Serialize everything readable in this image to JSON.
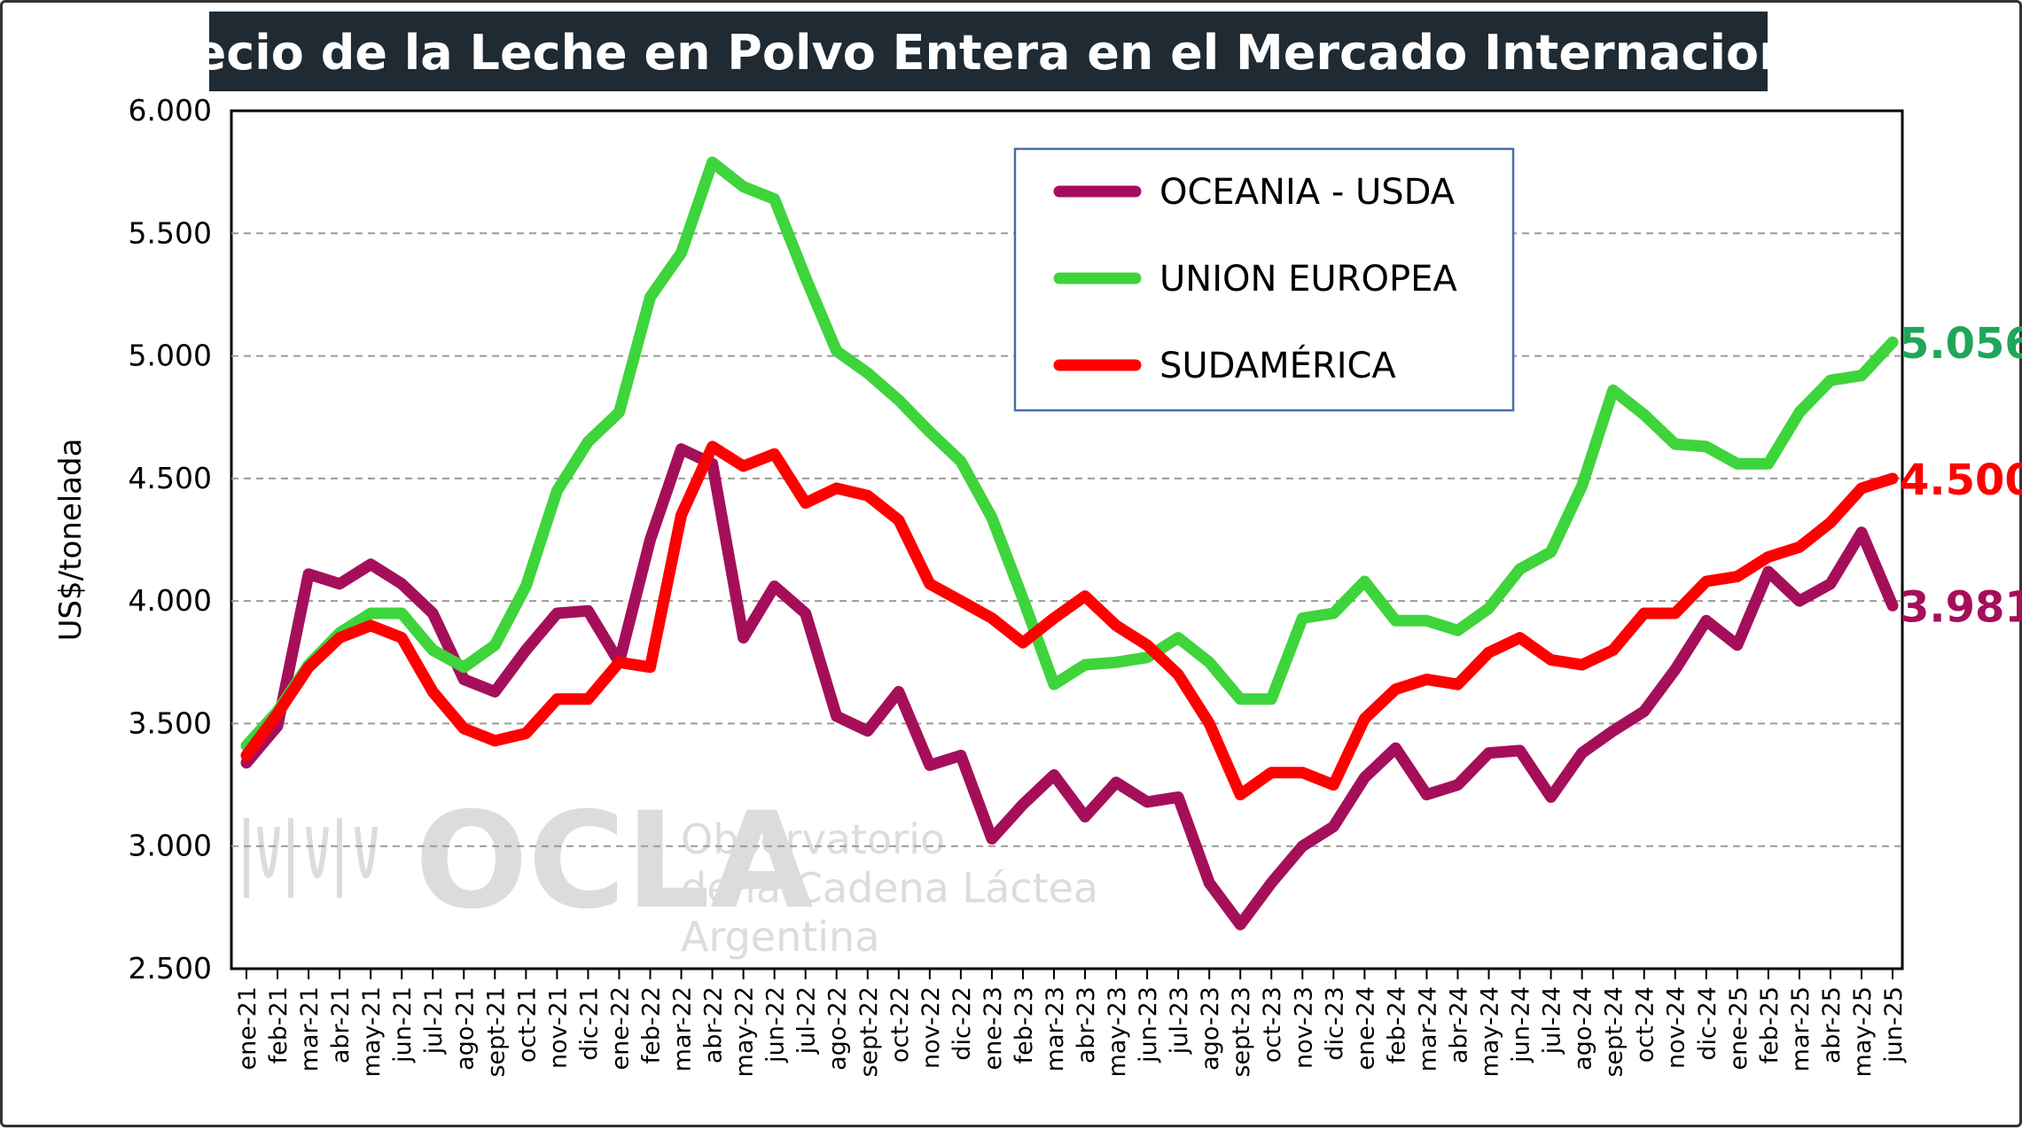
{
  "title": "Precio de la Leche en Polvo Entera en el Mercado Internacional",
  "watermark": {
    "logo": "OCLA",
    "line1": "Observatorio",
    "line2": "de la Cadena Láctea",
    "line3": "Argentina"
  },
  "chart_data": {
    "type": "line",
    "title": "Precio de la Leche en Polvo Entera en el Mercado Internacional",
    "xlabel": "",
    "ylabel": "US$/tonelada",
    "ylim": [
      2500,
      6000
    ],
    "yticks": [
      2500,
      3000,
      3500,
      4000,
      4500,
      5000,
      5500,
      6000
    ],
    "ytick_labels": [
      "2.500",
      "3.000",
      "3.500",
      "4.000",
      "4.500",
      "5.000",
      "5.500",
      "6.000"
    ],
    "grid": "horizontal dashed",
    "legend_position": "top-center",
    "categories": [
      "ene-21",
      "feb-21",
      "mar-21",
      "abr-21",
      "may-21",
      "jun-21",
      "jul-21",
      "ago-21",
      "sept-21",
      "oct-21",
      "nov-21",
      "dic-21",
      "ene-22",
      "feb-22",
      "mar-22",
      "abr-22",
      "may-22",
      "jun-22",
      "jul-22",
      "ago-22",
      "sept-22",
      "oct-22",
      "nov-22",
      "dic-22",
      "ene-23",
      "feb-23",
      "mar-23",
      "abr-23",
      "may-23",
      "jun-23",
      "jul-23",
      "ago-23",
      "sept-23",
      "oct-23",
      "nov-23",
      "dic-23",
      "ene-24",
      "feb-24",
      "mar-24",
      "abr-24",
      "may-24",
      "jun-24",
      "jul-24",
      "ago-24",
      "sept-24",
      "oct-24",
      "nov-24",
      "dic-24",
      "ene-25",
      "feb-25",
      "mar-25",
      "abr-25",
      "may-25",
      "jun-25"
    ],
    "series": [
      {
        "name": "OCEANIA - USDA",
        "color": "#a50f5a",
        "end_label": "3.981",
        "values": [
          3340,
          3490,
          4110,
          4070,
          4150,
          4070,
          3950,
          3680,
          3630,
          3800,
          3950,
          3960,
          3750,
          4250,
          4620,
          4560,
          3850,
          4060,
          3950,
          3530,
          3470,
          3630,
          3330,
          3370,
          3030,
          3170,
          3290,
          3120,
          3260,
          3180,
          3200,
          2850,
          2680,
          2850,
          3000,
          3080,
          3280,
          3400,
          3210,
          3250,
          3380,
          3390,
          3200,
          3380,
          3470,
          3550,
          3720,
          3920,
          3820,
          4120,
          4000,
          4070,
          4280,
          3981
        ]
      },
      {
        "name": "UNION EUROPEA",
        "color": "#3ed43b",
        "end_label": "5.056",
        "values": [
          3410,
          3550,
          3740,
          3870,
          3950,
          3950,
          3800,
          3730,
          3820,
          4060,
          4450,
          4650,
          4770,
          5240,
          5420,
          5790,
          5690,
          5640,
          5320,
          5020,
          4930,
          4820,
          4690,
          4570,
          4340,
          4010,
          3660,
          3740,
          3750,
          3770,
          3850,
          3750,
          3600,
          3600,
          3930,
          3950,
          4080,
          3920,
          3920,
          3880,
          3970,
          4130,
          4200,
          4470,
          4860,
          4760,
          4640,
          4630,
          4560,
          4560,
          4770,
          4900,
          4920,
          5056
        ]
      },
      {
        "name": "SUDAMÉRICA",
        "color": "#ff0000",
        "end_label": "4.500",
        "values": [
          3370,
          3540,
          3730,
          3850,
          3900,
          3850,
          3630,
          3480,
          3430,
          3460,
          3600,
          3600,
          3750,
          3730,
          4350,
          4630,
          4550,
          4600,
          4400,
          4460,
          4430,
          4330,
          4070,
          4000,
          3930,
          3830,
          3930,
          4020,
          3900,
          3820,
          3700,
          3500,
          3210,
          3300,
          3300,
          3250,
          3520,
          3640,
          3680,
          3660,
          3790,
          3850,
          3760,
          3740,
          3800,
          3950,
          3950,
          4080,
          4100,
          4180,
          4220,
          4320,
          4460,
          4500
        ]
      }
    ]
  }
}
